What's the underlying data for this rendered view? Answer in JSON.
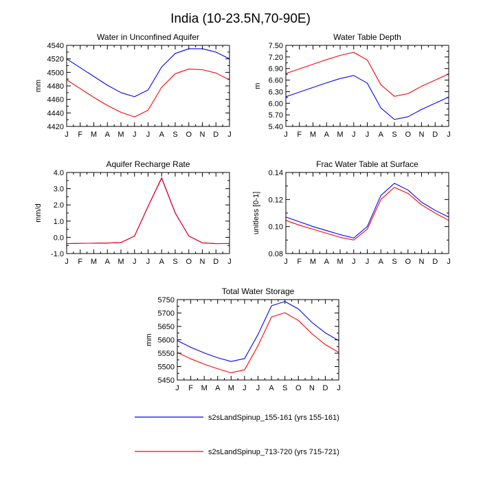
{
  "figure_title": "India (10-23.5N,70-90E)",
  "months": [
    "J",
    "F",
    "M",
    "A",
    "M",
    "J",
    "J",
    "A",
    "S",
    "O",
    "N",
    "D",
    "J"
  ],
  "legend": [
    {
      "label": "s2sLandSpinup_155-161 (yrs 155-161)",
      "color": "#0000ff"
    },
    {
      "label": "s2sLandSpinup_713-720 (yrs 715-721)",
      "color": "#ff0000"
    }
  ],
  "chart_data": [
    {
      "type": "line",
      "title": "Water in Unconfined Aquifer",
      "ylabel": "mm",
      "ylim": [
        4420,
        4540
      ],
      "yticks": [
        4420,
        4440,
        4460,
        4480,
        4500,
        4520,
        4540
      ],
      "ytick_labels": [
        "4420",
        "4440",
        "4460",
        "4480",
        "4500",
        "4520",
        "4540"
      ],
      "series": [
        {
          "name": "s2sLandSpinup_155-161 (yrs 155-161)",
          "color": "#0000ff",
          "values": [
            4520,
            4507,
            4494,
            4481,
            4470,
            4464,
            4474,
            4508,
            4528,
            4535,
            4535,
            4530,
            4520
          ]
        },
        {
          "name": "s2sLandSpinup_713-720 (yrs 715-721)",
          "color": "#ff0000",
          "values": [
            4489,
            4476,
            4463,
            4451,
            4441,
            4434,
            4444,
            4478,
            4498,
            4505,
            4504,
            4499,
            4489
          ]
        }
      ]
    },
    {
      "type": "line",
      "title": "Water Table Depth",
      "ylabel": "m",
      "ylim": [
        5.4,
        7.5
      ],
      "yticks": [
        5.4,
        5.7,
        6.0,
        6.3,
        6.6,
        6.9,
        7.2,
        7.5
      ],
      "ytick_labels": [
        "5.40",
        "5.70",
        "6.00",
        "6.30",
        "6.60",
        "6.90",
        "7.20",
        "7.50"
      ],
      "series": [
        {
          "name": "s2sLandSpinup_155-161 (yrs 155-161)",
          "color": "#0000ff",
          "values": [
            6.17,
            6.29,
            6.41,
            6.53,
            6.64,
            6.72,
            6.52,
            5.88,
            5.58,
            5.65,
            5.84,
            6.0,
            6.16
          ]
        },
        {
          "name": "s2sLandSpinup_713-720 (yrs 715-721)",
          "color": "#ff0000",
          "values": [
            6.77,
            6.89,
            7.01,
            7.13,
            7.24,
            7.32,
            7.12,
            6.48,
            6.18,
            6.25,
            6.44,
            6.6,
            6.76
          ]
        }
      ]
    },
    {
      "type": "line",
      "title": "Aquifer Recharge Rate",
      "ylabel": "mm/d",
      "ylim": [
        -1.0,
        4.0
      ],
      "yticks": [
        -1.0,
        0.0,
        1.0,
        2.0,
        3.0,
        4.0
      ],
      "ytick_labels": [
        "-1.0",
        "0.0",
        "1.0",
        "2.0",
        "3.0",
        "4.0"
      ],
      "series": [
        {
          "name": "s2sLandSpinup_155-161 (yrs 155-161)",
          "color": "#0000ff",
          "values": [
            -0.39,
            -0.37,
            -0.36,
            -0.35,
            -0.32,
            0.08,
            1.9,
            3.65,
            1.5,
            0.08,
            -0.34,
            -0.39,
            -0.38
          ]
        },
        {
          "name": "s2sLandSpinup_713-720 (yrs 715-721)",
          "color": "#ff0000",
          "values": [
            -0.39,
            -0.37,
            -0.36,
            -0.35,
            -0.32,
            0.08,
            1.92,
            3.68,
            1.52,
            0.08,
            -0.34,
            -0.39,
            -0.38
          ]
        }
      ]
    },
    {
      "type": "line",
      "title": "Frac Water Table at Surface",
      "ylabel": "unitless [0-1]",
      "ylim": [
        0.08,
        0.14
      ],
      "yticks": [
        0.08,
        0.1,
        0.12,
        0.14
      ],
      "ytick_labels": [
        "0.08",
        "0.10",
        "0.12",
        "0.14"
      ],
      "series": [
        {
          "name": "s2sLandSpinup_155-161 (yrs 155-161)",
          "color": "#0000ff",
          "values": [
            0.107,
            0.1035,
            0.1,
            0.097,
            0.094,
            0.0915,
            0.1,
            0.123,
            0.132,
            0.127,
            0.118,
            0.112,
            0.107
          ]
        },
        {
          "name": "s2sLandSpinup_713-720 (yrs 715-721)",
          "color": "#ff0000",
          "values": [
            0.1045,
            0.101,
            0.098,
            0.095,
            0.092,
            0.09,
            0.098,
            0.12,
            0.129,
            0.1245,
            0.116,
            0.11,
            0.1045
          ]
        }
      ]
    },
    {
      "type": "line",
      "title": "Total Water Storage",
      "ylabel": "mm",
      "ylim": [
        5450,
        5750
      ],
      "yticks": [
        5450,
        5500,
        5550,
        5600,
        5650,
        5700,
        5750
      ],
      "ytick_labels": [
        "5450",
        "5500",
        "5550",
        "5600",
        "5650",
        "5700",
        "5750"
      ],
      "series": [
        {
          "name": "s2sLandSpinup_155-161 (yrs 155-161)",
          "color": "#0000ff",
          "values": [
            5597,
            5572,
            5551,
            5533,
            5519,
            5530,
            5620,
            5727,
            5743,
            5715,
            5665,
            5626,
            5597
          ]
        },
        {
          "name": "s2sLandSpinup_713-720 (yrs 715-721)",
          "color": "#ff0000",
          "values": [
            5553,
            5529,
            5509,
            5492,
            5477,
            5488,
            5578,
            5685,
            5701,
            5672,
            5623,
            5582,
            5553
          ]
        }
      ]
    }
  ]
}
